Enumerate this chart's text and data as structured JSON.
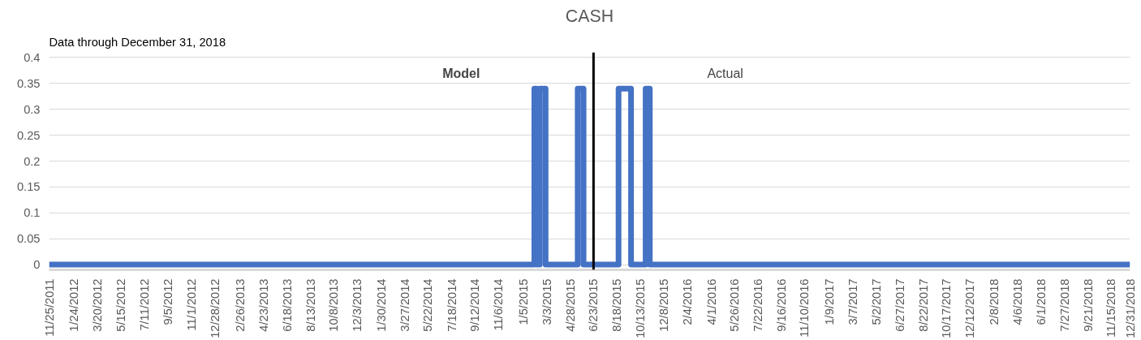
{
  "chart_data": {
    "type": "step",
    "title": "CASH",
    "subtitle": "Data through December 31, 2018",
    "annotations": [
      "Model",
      "Actual"
    ],
    "x": [
      "2011-11-25",
      "2015-02-01",
      "2015-02-07",
      "2015-02-14",
      "2015-02-28",
      "2015-05-16",
      "2015-05-30",
      "2015-08-22",
      "2015-09-21",
      "2015-10-26",
      "2015-11-05",
      "2018-12-31"
    ],
    "series": [
      {
        "color": "#4472c4",
        "values": [
          0,
          0.34,
          0,
          0.34,
          0,
          0.34,
          0,
          0.34,
          0,
          0.34,
          0,
          0
        ]
      }
    ],
    "xlim": [
      "2011-11-25",
      "2018-12-31"
    ],
    "xticks": [
      {
        "value": "2011-11-25",
        "label": "11/25/2011"
      },
      {
        "value": "2012-01-24",
        "label": "1/24/2012"
      },
      {
        "value": "2012-03-20",
        "label": "3/20/2012"
      },
      {
        "value": "2012-05-15",
        "label": "5/15/2012"
      },
      {
        "value": "2012-07-11",
        "label": "7/11/2012"
      },
      {
        "value": "2012-09-05",
        "label": "9/5/2012"
      },
      {
        "value": "2012-11-01",
        "label": "11/1/2012"
      },
      {
        "value": "2012-12-28",
        "label": "12/28/2012"
      },
      {
        "value": "2013-02-26",
        "label": "2/26/2013"
      },
      {
        "value": "2013-04-23",
        "label": "4/23/2013"
      },
      {
        "value": "2013-06-18",
        "label": "6/18/2013"
      },
      {
        "value": "2013-08-13",
        "label": "8/13/2013"
      },
      {
        "value": "2013-10-08",
        "label": "10/8/2013"
      },
      {
        "value": "2013-12-03",
        "label": "12/3/2013"
      },
      {
        "value": "2014-01-30",
        "label": "1/30/2014"
      },
      {
        "value": "2014-03-27",
        "label": "3/27/2014"
      },
      {
        "value": "2014-05-22",
        "label": "5/22/2014"
      },
      {
        "value": "2014-07-18",
        "label": "7/18/2014"
      },
      {
        "value": "2014-09-12",
        "label": "9/12/2014"
      },
      {
        "value": "2014-11-06",
        "label": "11/6/2014"
      },
      {
        "value": "2015-01-05",
        "label": "1/5/2015"
      },
      {
        "value": "2015-03-03",
        "label": "3/3/2015"
      },
      {
        "value": "2015-04-28",
        "label": "4/28/2015"
      },
      {
        "value": "2015-06-23",
        "label": "6/23/2015"
      },
      {
        "value": "2015-08-18",
        "label": "8/18/2015"
      },
      {
        "value": "2015-10-13",
        "label": "10/13/2015"
      },
      {
        "value": "2015-12-08",
        "label": "12/8/2015"
      },
      {
        "value": "2016-02-04",
        "label": "2/4/2016"
      },
      {
        "value": "2016-04-01",
        "label": "4/1/2016"
      },
      {
        "value": "2016-05-26",
        "label": "5/26/2016"
      },
      {
        "value": "2016-07-22",
        "label": "7/22/2016"
      },
      {
        "value": "2016-09-16",
        "label": "9/16/2016"
      },
      {
        "value": "2016-11-10",
        "label": "11/10/2016"
      },
      {
        "value": "2017-01-09",
        "label": "1/9/2017"
      },
      {
        "value": "2017-03-07",
        "label": "3/7/2017"
      },
      {
        "value": "2017-05-02",
        "label": "5/2/2017"
      },
      {
        "value": "2017-06-27",
        "label": "6/27/2017"
      },
      {
        "value": "2017-08-22",
        "label": "8/22/2017"
      },
      {
        "value": "2017-10-17",
        "label": "10/17/2017"
      },
      {
        "value": "2017-12-12",
        "label": "12/12/2017"
      },
      {
        "value": "2018-02-08",
        "label": "2/8/2018"
      },
      {
        "value": "2018-04-06",
        "label": "4/6/2018"
      },
      {
        "value": "2018-06-01",
        "label": "6/1/2018"
      },
      {
        "value": "2018-07-27",
        "label": "7/27/2018"
      },
      {
        "value": "2018-09-21",
        "label": "9/21/2018"
      },
      {
        "value": "2018-11-15",
        "label": "11/15/2018"
      },
      {
        "value": "2018-12-31",
        "label": "12/31/2018"
      }
    ],
    "ylim": [
      -0.01,
      0.41
    ],
    "yticks": [
      0,
      0.05,
      0.1,
      0.15,
      0.2,
      0.25,
      0.3,
      0.35,
      0.4
    ],
    "grid": "y",
    "ref_lines": [
      {
        "axis": "x",
        "value": "2015-06-23",
        "label": null,
        "color": "#000000"
      }
    ]
  }
}
